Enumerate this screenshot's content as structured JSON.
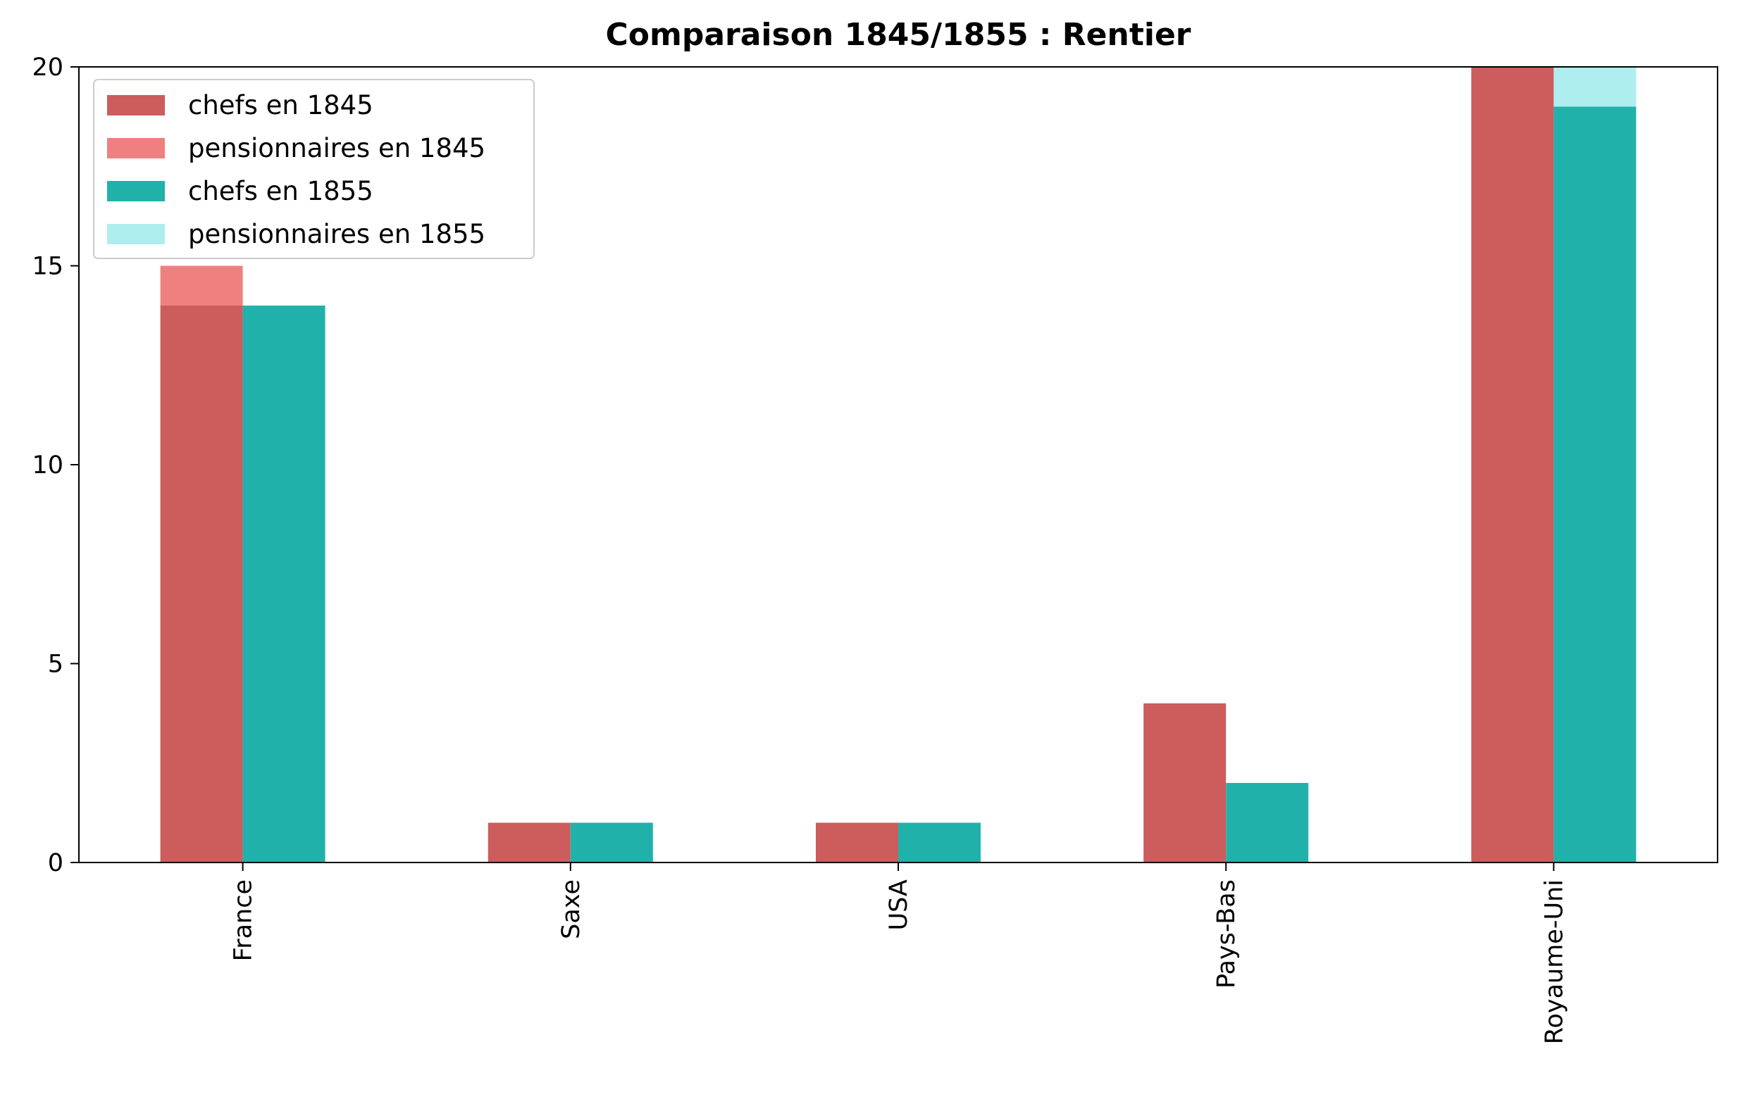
{
  "chart_data": {
    "type": "bar",
    "title": "Comparaison 1845/1855 : Rentier",
    "xlabel": "",
    "ylabel": "",
    "ylim": [
      0,
      20
    ],
    "yticks": [
      0,
      5,
      10,
      15,
      20
    ],
    "categories": [
      "France",
      "Saxe",
      "USA",
      "Pays-Bas",
      "Royaume-Uni"
    ],
    "series": [
      {
        "name": "chefs en 1845",
        "values": [
          14,
          1,
          1,
          4,
          20
        ],
        "color": "#cd5c5c",
        "group": "1845"
      },
      {
        "name": "pensionnaires en 1845",
        "values": [
          1,
          0,
          0,
          0,
          0
        ],
        "color": "#f08080",
        "group": "1845"
      },
      {
        "name": "chefs en 1855",
        "values": [
          14,
          1,
          1,
          2,
          19
        ],
        "color": "#20b2aa",
        "group": "1855"
      },
      {
        "name": "pensionnaires en 1855",
        "values": [
          0,
          0,
          0,
          0,
          1
        ],
        "color": "#afeeee",
        "group": "1855"
      }
    ],
    "legend_position": "top-left",
    "grid": false
  }
}
